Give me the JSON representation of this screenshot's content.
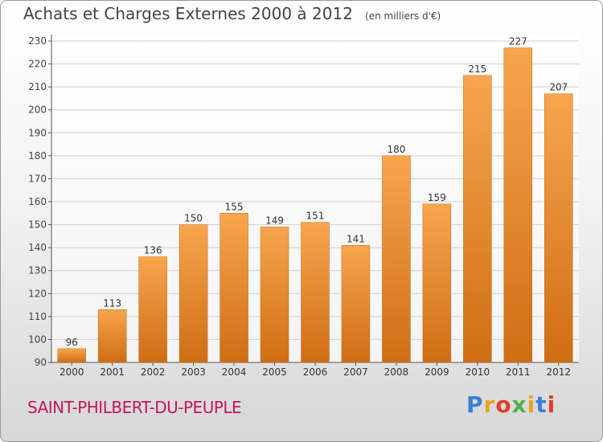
{
  "title": "Achats et Charges Externes 2000 à 2012",
  "unit": "(en milliers d'€)",
  "commune": "SAINT-PHILBERT-DU-PEUPLE",
  "logo": {
    "text": "Proxiti",
    "letter_colors": [
      "#3a7fd5",
      "#e8a521",
      "#e33c2a",
      "#4fb14f",
      "#e8a521",
      "#3a7fd5",
      "#e33c2a"
    ]
  },
  "colors": {
    "bar_light": "#f7a64d",
    "bar_dark": "#cf6d14",
    "grid": "#cfcfcf",
    "axis": "#555555"
  },
  "chart_data": {
    "type": "bar",
    "categories": [
      "2000",
      "2001",
      "2002",
      "2003",
      "2004",
      "2005",
      "2006",
      "2007",
      "2008",
      "2009",
      "2010",
      "2011",
      "2012"
    ],
    "values": [
      96,
      113,
      136,
      150,
      155,
      149,
      151,
      141,
      180,
      159,
      215,
      227,
      207
    ],
    "ylim": [
      90,
      230
    ],
    "yticks": [
      90,
      100,
      110,
      120,
      130,
      140,
      150,
      160,
      170,
      180,
      190,
      200,
      210,
      220,
      230
    ],
    "grid": true
  }
}
